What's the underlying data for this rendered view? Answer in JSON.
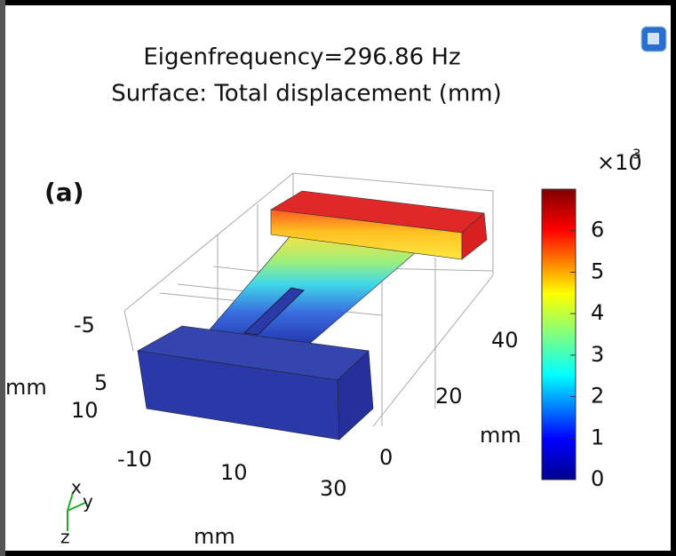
{
  "header": {
    "title_lines": [
      "Eigenfrequency=296.86 Hz",
      "Surface: Total displacement (mm)"
    ]
  },
  "panel_label": "(a)",
  "colorbar": {
    "multiplier": "×10",
    "exponent": "3",
    "ticks": [
      0,
      1,
      2,
      3,
      4,
      5,
      6
    ],
    "range": [
      0,
      7
    ]
  },
  "axis_labels": {
    "y_axis": [
      "-5",
      "5",
      "10"
    ],
    "y_unit": "mm",
    "x_axis": [
      "-10",
      "10",
      "30"
    ],
    "x_unit": "mm",
    "z_axis": [
      "0",
      "20",
      "40"
    ],
    "z_unit": "mm"
  },
  "triad": [
    "x",
    "y",
    "z"
  ]
}
